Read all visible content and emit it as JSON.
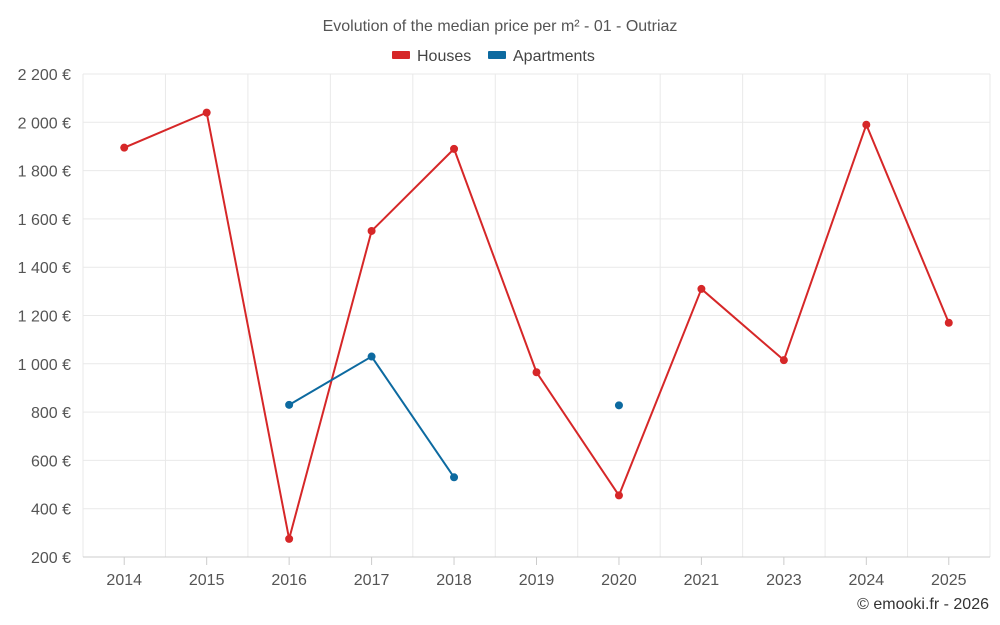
{
  "chart_data": {
    "type": "line",
    "title": "Evolution of the median price per m² - 01 - Outriaz",
    "categories": [
      "2014",
      "2015",
      "2016",
      "2017",
      "2018",
      "2019",
      "2020",
      "2021",
      "2023",
      "2024",
      "2025"
    ],
    "series": [
      {
        "name": "Houses",
        "color": "#d62728",
        "values": [
          1895,
          2040,
          275,
          1550,
          1890,
          965,
          455,
          1310,
          1015,
          1990,
          1170
        ]
      },
      {
        "name": "Apartments",
        "color": "#0d6aa0",
        "values": [
          null,
          null,
          830,
          1030,
          530,
          null,
          828,
          null,
          null,
          null,
          null
        ]
      }
    ],
    "ylim": [
      200,
      2200
    ],
    "yticks": [
      200,
      400,
      600,
      800,
      1000,
      1200,
      1400,
      1600,
      1800,
      2000,
      2200
    ],
    "ytick_labels": [
      "200 €",
      "400 €",
      "600 €",
      "800 €",
      "1 000 €",
      "1 200 €",
      "1 400 €",
      "1 600 €",
      "1 800 €",
      "2 000 €",
      "2 200 €"
    ],
    "xlabel": "",
    "ylabel": "",
    "legend_position": "top-center",
    "grid": true,
    "credit": "© emooki.fr - 2026"
  }
}
